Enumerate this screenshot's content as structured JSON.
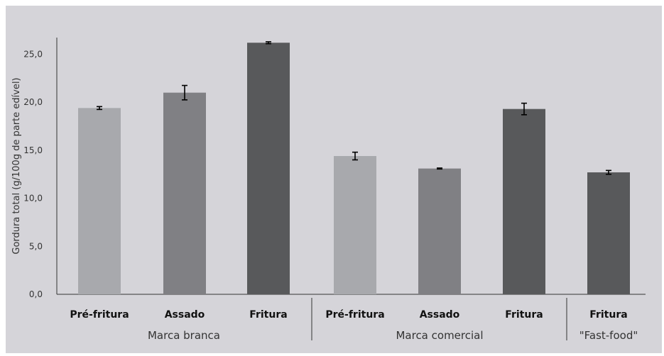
{
  "chart_data": {
    "type": "bar",
    "title": "",
    "xlabel": "",
    "ylabel": "Gordura total (g/100g de parte edível)",
    "ylim": [
      0,
      27.5
    ],
    "yticks": [
      0,
      5,
      10,
      15,
      20,
      25
    ],
    "ytick_labels": [
      "0,0",
      "5,0",
      "10,0",
      "15,0",
      "20,0",
      "25,0"
    ],
    "grid": false,
    "legend": "none",
    "categories": [
      "Pré-fritura",
      "Assado",
      "Fritura",
      "Pré-fritura",
      "Assado",
      "Fritura",
      "Fritura"
    ],
    "values": [
      19.4,
      21.0,
      26.2,
      14.4,
      13.1,
      19.3,
      12.7
    ],
    "errors": [
      0.15,
      0.75,
      0.1,
      0.4,
      0.05,
      0.6,
      0.2
    ],
    "bar_colors": [
      "#a8a9ad",
      "#808084",
      "#58595b",
      "#a8a9ad",
      "#808084",
      "#58595b",
      "#58595b"
    ],
    "groups": [
      {
        "label": "Marca branca",
        "start": 0,
        "end": 2
      },
      {
        "label": "Marca comercial",
        "start": 3,
        "end": 5
      },
      {
        "label": "\"Fast-food\"",
        "start": 6,
        "end": 6
      }
    ]
  }
}
